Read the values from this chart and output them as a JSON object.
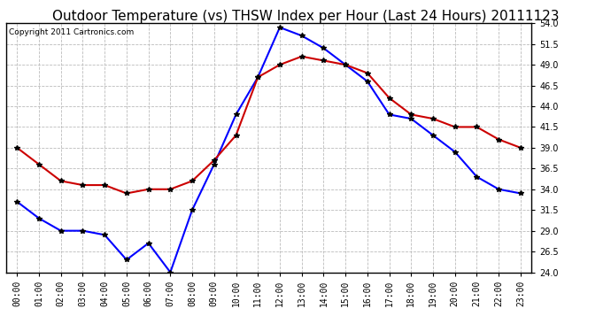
{
  "title": "Outdoor Temperature (vs) THSW Index per Hour (Last 24 Hours) 20111123",
  "copyright": "Copyright 2011 Cartronics.com",
  "hours": [
    "00:00",
    "01:00",
    "02:00",
    "03:00",
    "04:00",
    "05:00",
    "06:00",
    "07:00",
    "08:00",
    "09:00",
    "10:00",
    "11:00",
    "12:00",
    "13:00",
    "14:00",
    "15:00",
    "16:00",
    "17:00",
    "18:00",
    "19:00",
    "20:00",
    "21:00",
    "22:00",
    "23:00"
  ],
  "thsw": [
    32.5,
    30.5,
    29.0,
    29.0,
    28.5,
    25.5,
    27.5,
    24.0,
    31.5,
    37.0,
    43.0,
    47.5,
    53.5,
    52.5,
    51.0,
    49.0,
    47.0,
    43.0,
    42.5,
    40.5,
    38.5,
    35.5,
    34.0,
    33.5
  ],
  "outdoor_temp": [
    39.0,
    37.0,
    35.0,
    34.5,
    34.5,
    33.5,
    34.0,
    34.0,
    35.0,
    37.5,
    40.5,
    47.5,
    49.0,
    50.0,
    49.5,
    49.0,
    48.0,
    45.0,
    43.0,
    42.5,
    41.5,
    41.5,
    40.0,
    39.0
  ],
  "thsw_color": "#0000ff",
  "temp_color": "#cc0000",
  "marker": "*",
  "marker_size": 4,
  "grid_color": "#bbbbbb",
  "bg_color": "#ffffff",
  "fig_bg_color": "#ffffff",
  "ylim": [
    24.0,
    54.0
  ],
  "yticks": [
    24.0,
    26.5,
    29.0,
    31.5,
    34.0,
    36.5,
    39.0,
    41.5,
    44.0,
    46.5,
    49.0,
    51.5,
    54.0
  ],
  "title_fontsize": 11,
  "copyright_fontsize": 6.5,
  "tick_fontsize": 7,
  "line_width": 1.5
}
